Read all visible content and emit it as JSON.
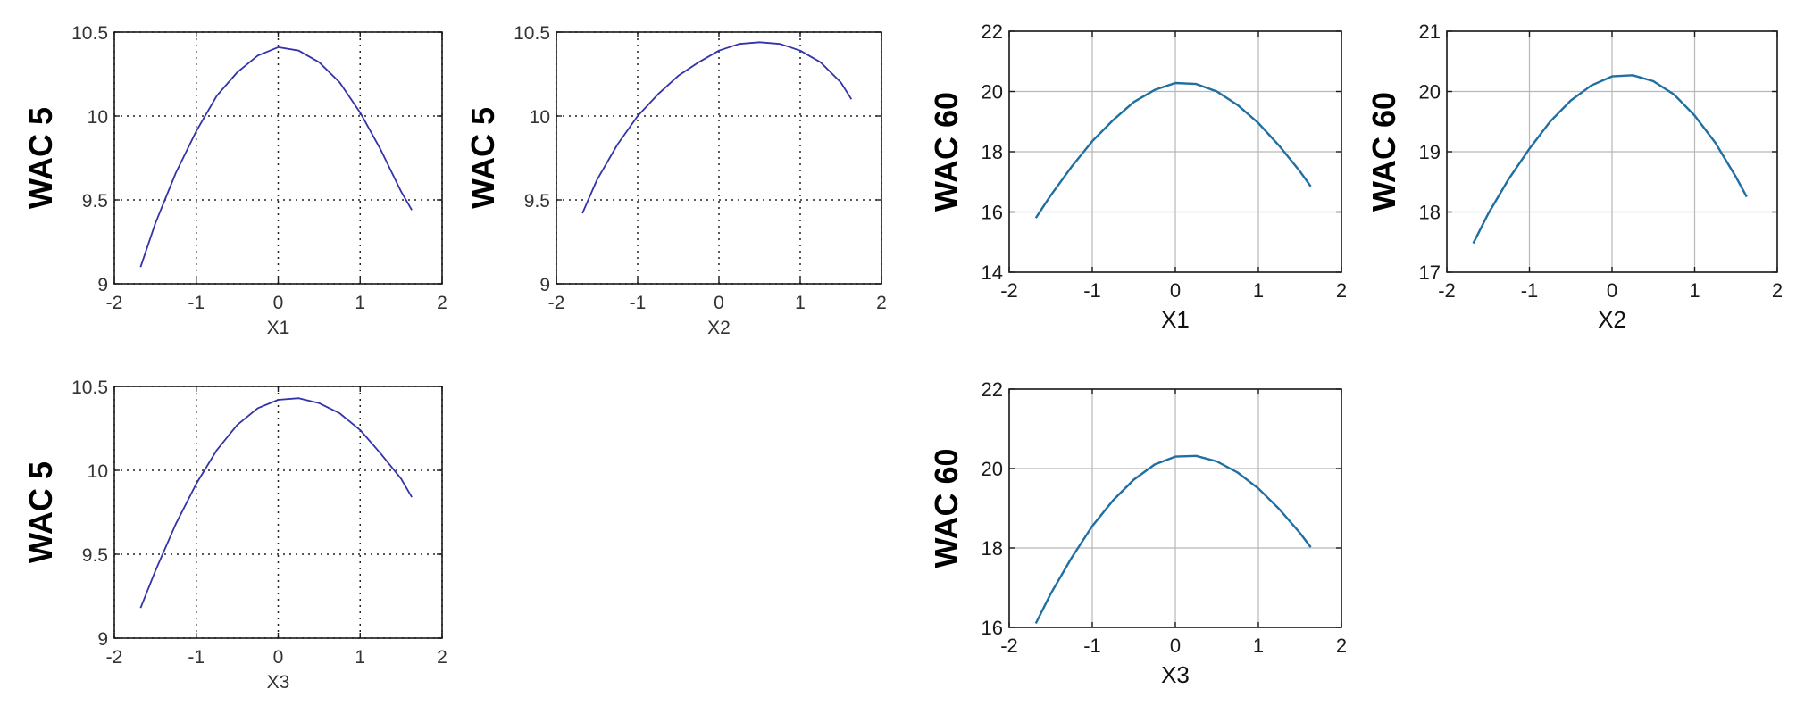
{
  "chart_data": [
    {
      "type": "line",
      "style": "dotted-grid",
      "xlabel": "X1",
      "ylabel": "WAC 5",
      "xlim": [
        -2,
        2
      ],
      "ylim": [
        9,
        10.5
      ],
      "xticks": [
        "-2",
        "-1",
        "0",
        "1",
        "2"
      ],
      "yticks": [
        "9",
        "9.5",
        "10",
        "10.5"
      ],
      "grid": true,
      "color": "#3333aa",
      "series": [
        {
          "x": [
            -1.68,
            -1.5,
            -1.25,
            -1.0,
            -0.75,
            -0.5,
            -0.25,
            0.0,
            0.25,
            0.5,
            0.75,
            1.0,
            1.25,
            1.5,
            1.63
          ],
          "values": [
            9.1,
            9.36,
            9.66,
            9.91,
            10.12,
            10.26,
            10.36,
            10.41,
            10.39,
            10.32,
            10.2,
            10.02,
            9.8,
            9.55,
            9.44
          ]
        }
      ]
    },
    {
      "type": "line",
      "style": "dotted-grid",
      "xlabel": "X2",
      "ylabel": "WAC 5",
      "xlim": [
        -2,
        2
      ],
      "ylim": [
        9,
        10.5
      ],
      "xticks": [
        "-2",
        "-1",
        "0",
        "1",
        "2"
      ],
      "yticks": [
        "9",
        "9.5",
        "10",
        "10.5"
      ],
      "grid": true,
      "color": "#3333aa",
      "series": [
        {
          "x": [
            -1.68,
            -1.5,
            -1.25,
            -1.0,
            -0.75,
            -0.5,
            -0.25,
            0.0,
            0.25,
            0.5,
            0.75,
            1.0,
            1.25,
            1.5,
            1.63
          ],
          "values": [
            9.42,
            9.62,
            9.83,
            10.0,
            10.13,
            10.24,
            10.32,
            10.39,
            10.43,
            10.44,
            10.43,
            10.39,
            10.32,
            10.2,
            10.1
          ]
        }
      ]
    },
    {
      "type": "line",
      "style": "solid-grid",
      "xlabel": "X1",
      "ylabel": "WAC 60",
      "xlim": [
        -2,
        2
      ],
      "ylim": [
        14,
        22
      ],
      "xticks": [
        "-2",
        "-1",
        "0",
        "1",
        "2"
      ],
      "yticks": [
        "14",
        "16",
        "18",
        "20",
        "22"
      ],
      "grid": true,
      "color": "#1f6fa3",
      "series": [
        {
          "x": [
            -1.68,
            -1.5,
            -1.25,
            -1.0,
            -0.75,
            -0.5,
            -0.25,
            0.0,
            0.25,
            0.5,
            0.75,
            1.0,
            1.25,
            1.5,
            1.63
          ],
          "values": [
            15.8,
            16.55,
            17.5,
            18.35,
            19.05,
            19.65,
            20.05,
            20.28,
            20.25,
            20.0,
            19.55,
            18.95,
            18.2,
            17.35,
            16.85
          ]
        }
      ]
    },
    {
      "type": "line",
      "style": "solid-grid",
      "xlabel": "X2",
      "ylabel": "WAC 60",
      "xlim": [
        -2,
        2
      ],
      "ylim": [
        17,
        21
      ],
      "xticks": [
        "-2",
        "-1",
        "0",
        "1",
        "2"
      ],
      "yticks": [
        "17",
        "18",
        "19",
        "20",
        "21"
      ],
      "grid": true,
      "color": "#1f6fa3",
      "series": [
        {
          "x": [
            -1.68,
            -1.5,
            -1.25,
            -1.0,
            -0.75,
            -0.5,
            -0.25,
            0.0,
            0.25,
            0.5,
            0.75,
            1.0,
            1.25,
            1.5,
            1.63
          ],
          "values": [
            17.48,
            17.97,
            18.55,
            19.05,
            19.5,
            19.85,
            20.1,
            20.25,
            20.27,
            20.17,
            19.95,
            19.6,
            19.15,
            18.58,
            18.25
          ]
        }
      ]
    },
    {
      "type": "line",
      "style": "dotted-grid",
      "xlabel": "X3",
      "ylabel": "WAC 5",
      "xlim": [
        -2,
        2
      ],
      "ylim": [
        9,
        10.5
      ],
      "xticks": [
        "-2",
        "-1",
        "0",
        "1",
        "2"
      ],
      "yticks": [
        "9",
        "9.5",
        "10",
        "10.5"
      ],
      "grid": true,
      "color": "#3333aa",
      "series": [
        {
          "x": [
            -1.68,
            -1.5,
            -1.25,
            -1.0,
            -0.75,
            -0.5,
            -0.25,
            0.0,
            0.25,
            0.5,
            0.75,
            1.0,
            1.25,
            1.5,
            1.63
          ],
          "values": [
            9.18,
            9.4,
            9.68,
            9.92,
            10.12,
            10.27,
            10.37,
            10.42,
            10.43,
            10.4,
            10.34,
            10.24,
            10.1,
            9.95,
            9.84
          ]
        }
      ]
    },
    {
      "type": "line",
      "style": "solid-grid",
      "xlabel": "X3",
      "ylabel": "WAC 60",
      "xlim": [
        -2,
        2
      ],
      "ylim": [
        16,
        22
      ],
      "xticks": [
        "-2",
        "-1",
        "0",
        "1",
        "2"
      ],
      "yticks": [
        "16",
        "18",
        "20",
        "22"
      ],
      "grid": true,
      "color": "#1f6fa3",
      "series": [
        {
          "x": [
            -1.68,
            -1.5,
            -1.25,
            -1.0,
            -0.75,
            -0.5,
            -0.25,
            0.0,
            0.25,
            0.5,
            0.75,
            1.0,
            1.25,
            1.5,
            1.63
          ],
          "values": [
            16.1,
            16.85,
            17.75,
            18.55,
            19.2,
            19.72,
            20.1,
            20.3,
            20.32,
            20.18,
            19.9,
            19.5,
            18.98,
            18.38,
            18.02
          ]
        }
      ]
    }
  ]
}
